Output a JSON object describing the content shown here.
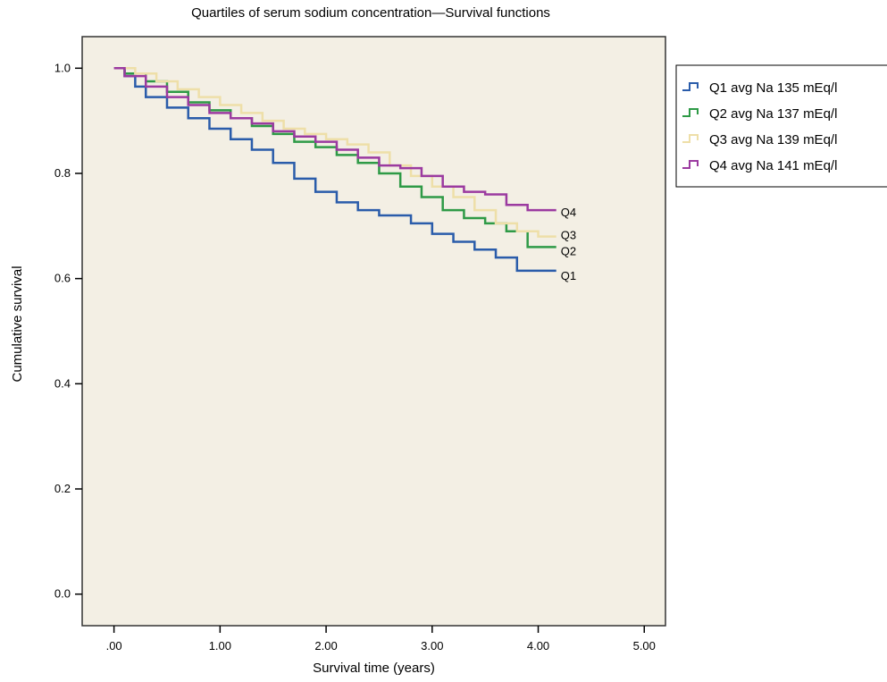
{
  "chart_data": {
    "type": "line",
    "title": "Quartiles  of serum sodium concentration—Survival functions",
    "xlabel": "Survival time (years)",
    "ylabel": "Cumulative survival",
    "xlim": [
      -0.3,
      5.2
    ],
    "ylim": [
      -0.06,
      1.06
    ],
    "x_ticks": [
      0,
      1,
      2,
      3,
      4,
      5
    ],
    "x_tick_labels": [
      ".00",
      "1.00",
      "2.00",
      "3.00",
      "4.00",
      "5.00"
    ],
    "y_ticks": [
      0,
      0.2,
      0.4,
      0.6,
      0.8,
      1.0
    ],
    "y_tick_labels": [
      "0.0",
      "0.2",
      "0.4",
      "0.6",
      "0.8",
      "1.0"
    ],
    "step": true,
    "background": "#f3efe4",
    "legend_position": "right-outside",
    "series": [
      {
        "name": "Q1 avg Na 135 mEq/l",
        "end_label": "Q1",
        "color": "#2a5caa",
        "x": [
          0,
          0.1,
          0.2,
          0.3,
          0.5,
          0.7,
          0.9,
          1.1,
          1.3,
          1.5,
          1.7,
          1.9,
          2.1,
          2.3,
          2.5,
          2.8,
          3.0,
          3.2,
          3.4,
          3.6,
          3.8,
          4.0,
          4.17
        ],
        "y": [
          1.0,
          0.985,
          0.965,
          0.945,
          0.925,
          0.905,
          0.885,
          0.865,
          0.845,
          0.82,
          0.79,
          0.765,
          0.745,
          0.73,
          0.72,
          0.705,
          0.685,
          0.67,
          0.655,
          0.64,
          0.615,
          0.615,
          0.615
        ]
      },
      {
        "name": "Q2 avg Na 137 mEq/l",
        "end_label": "Q2",
        "color": "#2e9a46",
        "x": [
          0,
          0.1,
          0.3,
          0.5,
          0.7,
          0.9,
          1.1,
          1.3,
          1.5,
          1.7,
          1.9,
          2.1,
          2.3,
          2.5,
          2.7,
          2.9,
          3.1,
          3.3,
          3.5,
          3.7,
          3.9,
          4.17
        ],
        "y": [
          1.0,
          0.99,
          0.975,
          0.955,
          0.935,
          0.92,
          0.905,
          0.89,
          0.875,
          0.86,
          0.85,
          0.835,
          0.82,
          0.8,
          0.775,
          0.755,
          0.73,
          0.715,
          0.705,
          0.69,
          0.66,
          0.66
        ]
      },
      {
        "name": "Q3 avg Na 139 mEq/l",
        "end_label": "Q3",
        "color": "#eedfa8",
        "x": [
          0,
          0.2,
          0.4,
          0.6,
          0.8,
          1.0,
          1.2,
          1.4,
          1.6,
          1.8,
          2.0,
          2.2,
          2.4,
          2.6,
          2.8,
          3.0,
          3.2,
          3.4,
          3.6,
          3.8,
          4.0,
          4.17
        ],
        "y": [
          1.0,
          0.99,
          0.975,
          0.96,
          0.945,
          0.93,
          0.915,
          0.9,
          0.885,
          0.875,
          0.865,
          0.855,
          0.84,
          0.815,
          0.795,
          0.775,
          0.755,
          0.73,
          0.705,
          0.69,
          0.68,
          0.68
        ]
      },
      {
        "name": "Q4 avg Na 141 mEq/l",
        "end_label": "Q4",
        "color": "#9b3aa0",
        "x": [
          0,
          0.1,
          0.3,
          0.5,
          0.7,
          0.9,
          1.1,
          1.3,
          1.5,
          1.7,
          1.9,
          2.1,
          2.3,
          2.5,
          2.7,
          2.9,
          3.1,
          3.3,
          3.5,
          3.7,
          3.9,
          4.17
        ],
        "y": [
          1.0,
          0.985,
          0.965,
          0.945,
          0.93,
          0.915,
          0.905,
          0.895,
          0.88,
          0.87,
          0.86,
          0.845,
          0.83,
          0.815,
          0.81,
          0.795,
          0.775,
          0.765,
          0.76,
          0.74,
          0.73,
          0.73
        ]
      }
    ]
  }
}
